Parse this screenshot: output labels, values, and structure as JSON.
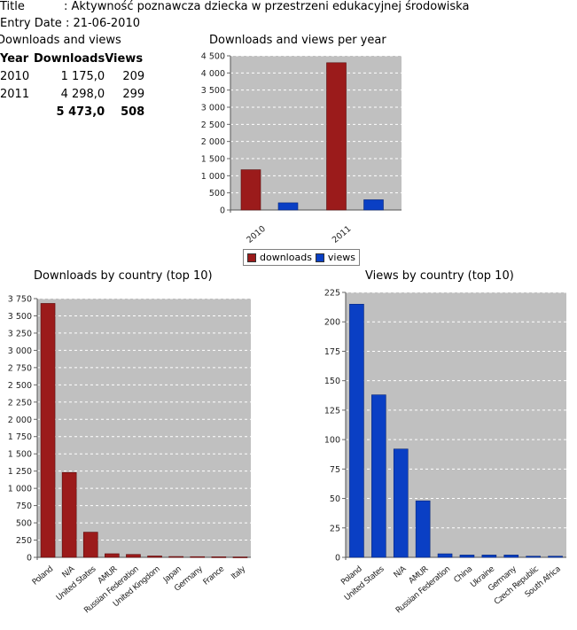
{
  "meta": {
    "title_label": "Title",
    "title_value": ": Aktywność poznawcza dziecka w przestrzeni edukacyjnej środowiska",
    "entry_label": "Entry Date",
    "entry_value": ": 21-06-2010"
  },
  "stats": {
    "heading": "Downloads and views",
    "headers": [
      "Year",
      "Downloads",
      "Views"
    ],
    "rows": [
      {
        "year": "2010",
        "downloads": "1 175,0",
        "views": "209"
      },
      {
        "year": "2011",
        "downloads": "4 298,0",
        "views": "299"
      }
    ],
    "total": {
      "downloads": "5 473,0",
      "views": "508"
    }
  },
  "colors": {
    "downloads": "#9b1b1b",
    "views": "#0a3fc4",
    "plot_bg": "#c0c0c0"
  },
  "legend": {
    "downloads": "downloads",
    "views": "views"
  },
  "chart_data": [
    {
      "type": "bar",
      "title": "Downloads and views per year",
      "categories": [
        "2010",
        "2011"
      ],
      "series": [
        {
          "name": "downloads",
          "values": [
            1175,
            4298
          ]
        },
        {
          "name": "views",
          "values": [
            209,
            299
          ]
        }
      ],
      "ylim": [
        0,
        4500
      ],
      "yticks": [
        0,
        500,
        1000,
        1500,
        2000,
        2500,
        3000,
        3500,
        4000,
        4500
      ],
      "ytick_labels": [
        "0",
        "500",
        "1 000",
        "1 500",
        "2 000",
        "2 500",
        "3 000",
        "3 500",
        "4 000",
        "4 500"
      ],
      "grid": true,
      "legend": "bottom"
    },
    {
      "type": "bar",
      "title": "Downloads by country (top 10)",
      "categories": [
        "Poland",
        "N/A",
        "United States",
        "AMUR",
        "Russian Federation",
        "United Kingdom",
        "Japan",
        "Germany",
        "France",
        "Italy"
      ],
      "values": [
        3680,
        1230,
        365,
        52,
        42,
        20,
        12,
        10,
        8,
        6
      ],
      "ylim": [
        0,
        3750
      ],
      "yticks": [
        0,
        250,
        500,
        750,
        1000,
        1250,
        1500,
        1750,
        2000,
        2250,
        2500,
        2750,
        3000,
        3250,
        3500,
        3750
      ],
      "ytick_labels": [
        "0",
        "250",
        "500",
        "750",
        "1 000",
        "1 250",
        "1 500",
        "1 750",
        "2 000",
        "2 250",
        "2 500",
        "2 750",
        "3 000",
        "3 250",
        "3 500",
        "3 750"
      ],
      "grid": true
    },
    {
      "type": "bar",
      "title": "Views by country (top 10)",
      "categories": [
        "Poland",
        "United States",
        "N/A",
        "AMUR",
        "Russian Federation",
        "China",
        "Ukraine",
        "Germany",
        "Czech Republic",
        "South Africa"
      ],
      "values": [
        215,
        138,
        92,
        48,
        3,
        2,
        2,
        2,
        1,
        1
      ],
      "ylim": [
        0,
        225
      ],
      "yticks": [
        0,
        25,
        50,
        75,
        100,
        125,
        150,
        175,
        200,
        225
      ],
      "ytick_labels": [
        "0",
        "25",
        "50",
        "75",
        "100",
        "125",
        "150",
        "175",
        "200",
        "225"
      ],
      "grid": true
    }
  ]
}
